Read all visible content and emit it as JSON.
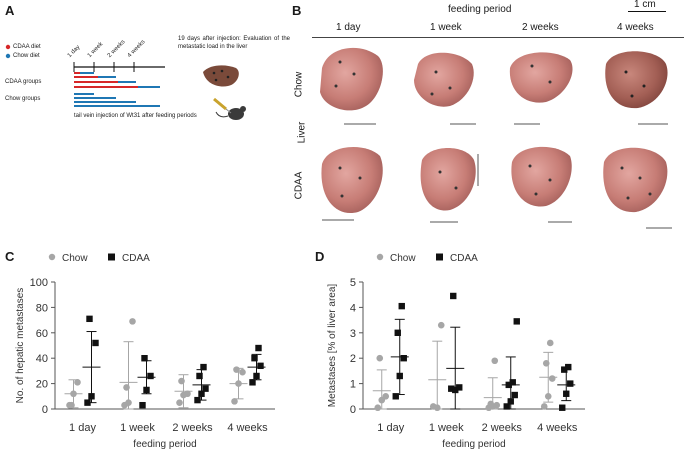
{
  "panel_labels": {
    "a": "A",
    "b": "B",
    "c": "C",
    "d": "D"
  },
  "panelA": {
    "legend": [
      {
        "label": "CDAA diet",
        "color": "#d62728"
      },
      {
        "label": "Chow diet",
        "color": "#1f77b4"
      }
    ],
    "timeline_labels": [
      "1 day",
      "1 week",
      "2 weeks",
      "4 weeks"
    ],
    "groups": [
      "CDAA groups",
      "Chow groups"
    ],
    "evaluation_note": "19 days after injection: Evaluation of the metastatic load in the liver",
    "injection_note": "tail vein injection of Wt31 after feeding periods",
    "icons": [
      "liver-icon",
      "mouse-icon"
    ]
  },
  "panelB": {
    "header": "feeding period",
    "scale_label": "1 cm",
    "columns": [
      "1 day",
      "1 week",
      "2 weeks",
      "4 weeks"
    ],
    "row_group_label": "Liver",
    "rows": [
      "Chow",
      "CDAA"
    ]
  },
  "chart_data": [
    {
      "id": "C",
      "type": "scatter",
      "title": "",
      "xlabel": "feeding period",
      "ylabel": "No. of hepatic metastases",
      "ylim": [
        0,
        100
      ],
      "yticks": [
        0,
        20,
        40,
        60,
        80,
        100
      ],
      "categories": [
        "1 day",
        "1 week",
        "2 weeks",
        "4 weeks"
      ],
      "legend": [
        "Chow",
        "CDAA"
      ],
      "series": [
        {
          "name": "Chow",
          "color": "#a6a6a6",
          "marker": "circle",
          "values": [
            [
              3,
              12,
              21,
              3
            ],
            [
              3,
              5,
              69,
              17
            ],
            [
              5,
              11,
              12,
              22
            ],
            [
              6,
              20,
              29,
              31
            ]
          ],
          "mean": [
            12,
            21,
            14,
            20
          ],
          "sd": [
            11,
            32,
            13,
            12
          ]
        },
        {
          "name": "CDAA",
          "color": "#111111",
          "marker": "square",
          "values": [
            [
              5,
              10,
              52,
              71
            ],
            [
              3,
              15,
              26,
              40
            ],
            [
              7,
              12,
              16,
              26,
              33
            ],
            [
              21,
              26,
              34,
              40,
              48
            ]
          ],
          "mean": [
            33,
            25,
            19,
            33
          ],
          "sd": [
            28,
            13,
            12,
            10
          ]
        }
      ]
    },
    {
      "id": "D",
      "type": "scatter",
      "title": "",
      "xlabel": "feeding period",
      "ylabel": "Metastases [% of liver area]",
      "ylim": [
        0,
        5
      ],
      "yticks": [
        0,
        1,
        2,
        3,
        4,
        5
      ],
      "categories": [
        "1 day",
        "1 week",
        "2 weeks",
        "4 weeks"
      ],
      "legend": [
        "Chow",
        "CDAA"
      ],
      "series": [
        {
          "name": "Chow",
          "color": "#a6a6a6",
          "marker": "circle",
          "values": [
            [
              0.05,
              0.35,
              0.5,
              2.0
            ],
            [
              0.1,
              0.05,
              3.3
            ],
            [
              0.05,
              0.1,
              0.15,
              0.2,
              1.9
            ],
            [
              0.1,
              0.5,
              1.2,
              1.8,
              2.6
            ]
          ],
          "mean": [
            0.72,
            1.15,
            0.45,
            1.25
          ],
          "sd": [
            0.82,
            1.52,
            0.78,
            0.98
          ]
        },
        {
          "name": "CDAA",
          "color": "#111111",
          "marker": "square",
          "values": [
            [
              0.5,
              1.3,
              2.0,
              3.0,
              4.05
            ],
            [
              0.8,
              0.75,
              0.85,
              4.45
            ],
            [
              0.1,
              0.3,
              0.55,
              0.95,
              1.05,
              3.45
            ],
            [
              0.05,
              0.6,
              1.0,
              1.55,
              1.65
            ]
          ],
          "mean": [
            2.05,
            1.6,
            0.95,
            0.95
          ],
          "sd": [
            1.48,
            1.62,
            1.1,
            0.62
          ]
        }
      ]
    }
  ]
}
